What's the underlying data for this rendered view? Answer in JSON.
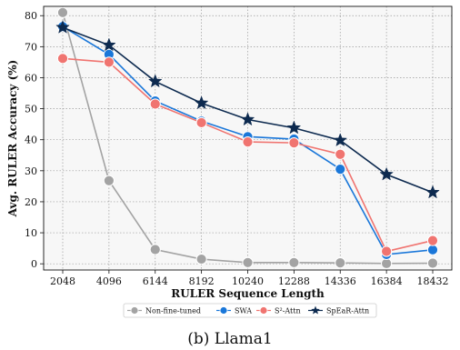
{
  "chart_data": {
    "type": "line",
    "xlabel": "RULER Sequence Length",
    "ylabel": "Avg. RULER Accuracy (%)",
    "x": [
      2048,
      4096,
      6144,
      8192,
      10240,
      12288,
      14336,
      16384,
      18432
    ],
    "xtick_labels": [
      "2048",
      "4096",
      "6144",
      "8192",
      "10240",
      "12288",
      "14336",
      "16384",
      "18432"
    ],
    "ylim": [
      -2,
      83
    ],
    "yticks": [
      0,
      10,
      20,
      30,
      40,
      50,
      60,
      70,
      80
    ],
    "ytick_labels": [
      "0",
      "10",
      "20",
      "30",
      "40",
      "50",
      "60",
      "70",
      "80"
    ],
    "grid": true,
    "legend_position": "bottom",
    "caption": "(b) Llama1",
    "series": [
      {
        "name": "Non-fine-tuned",
        "color": "#a3a3a3",
        "marker": "circle",
        "values": [
          81,
          26.8,
          4.6,
          1.5,
          0.4,
          0.4,
          0.3,
          0.1,
          0.2
        ]
      },
      {
        "name": "SWA",
        "color": "#1a77d9",
        "marker": "circle",
        "values": [
          76.5,
          67.5,
          52.5,
          46,
          41,
          40.2,
          30.5,
          3,
          4.5
        ]
      },
      {
        "name": "S²-Attn",
        "color": "#f07470",
        "marker": "circle",
        "values": [
          66.2,
          65,
          51.5,
          45.5,
          39.3,
          39,
          35.3,
          4,
          7.5
        ]
      },
      {
        "name": "SpEaR-Attn",
        "color": "#0d2a4f",
        "marker": "star",
        "values": [
          76.2,
          70.5,
          58.8,
          51.8,
          46.5,
          43.8,
          39.8,
          28.8,
          23
        ]
      }
    ]
  }
}
